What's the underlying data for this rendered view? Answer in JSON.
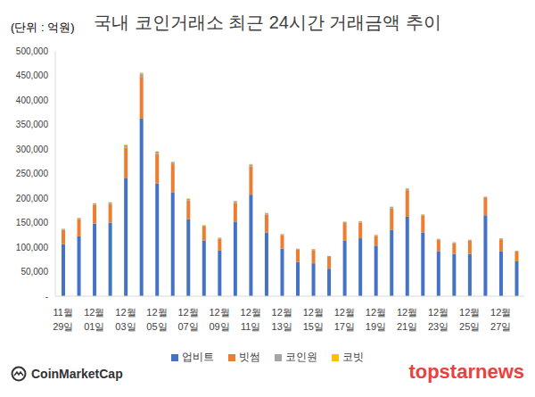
{
  "chart_data": {
    "type": "bar",
    "title": "국내 코인거래소 최근 24시간 거래금액 추이",
    "subtitle": "(단위 : 억원)",
    "categories": [
      "11월 29일",
      null,
      "12월 01일",
      null,
      "12월 03일",
      null,
      "12월 05일",
      null,
      "12월 07일",
      null,
      "12월 09일",
      null,
      "12월 11일",
      null,
      "12월 13일",
      null,
      "12월 15일",
      null,
      "12월 17일",
      null,
      "12월 19일",
      null,
      "12월 21일",
      null,
      "12월 23일",
      null,
      "12월 25일",
      null,
      "12월 27일",
      null
    ],
    "series": [
      {
        "name": "업비트",
        "color": "#4472c4",
        "values": [
          106000,
          122000,
          148000,
          150000,
          240000,
          362000,
          230000,
          212000,
          157000,
          113000,
          93000,
          152000,
          207000,
          130000,
          97000,
          70000,
          67000,
          56000,
          113000,
          118000,
          103000,
          135000,
          162000,
          130000,
          92000,
          86000,
          86000,
          165000,
          92000,
          71000
        ]
      },
      {
        "name": "빗썸",
        "color": "#ed7d31",
        "values": [
          29000,
          35000,
          38000,
          38000,
          63000,
          85000,
          60000,
          57000,
          38000,
          29000,
          24000,
          38000,
          57000,
          36000,
          27000,
          25000,
          27000,
          24000,
          36000,
          32000,
          20000,
          44000,
          54000,
          34000,
          23000,
          22000,
          27000,
          35000,
          24000,
          20000
        ]
      },
      {
        "name": "코인원",
        "color": "#a5a5a5",
        "values": [
          2000,
          2500,
          3000,
          3000,
          5000,
          7000,
          4500,
          4500,
          3500,
          2500,
          2000,
          3500,
          4500,
          3000,
          2500,
          1800,
          2000,
          1800,
          2500,
          2500,
          1800,
          3000,
          3500,
          2500,
          1800,
          1800,
          1800,
          2500,
          1800,
          1500
        ]
      },
      {
        "name": "코빗",
        "color": "#ffc000",
        "values": [
          500,
          600,
          700,
          700,
          1200,
          1500,
          1000,
          1000,
          800,
          600,
          500,
          800,
          1000,
          700,
          500,
          400,
          400,
          400,
          600,
          600,
          400,
          700,
          800,
          600,
          400,
          400,
          400,
          600,
          400,
          300
        ]
      }
    ],
    "ylim": [
      0,
      500000
    ],
    "yticks": [
      {
        "value": 0,
        "label": "-"
      },
      {
        "value": 50000,
        "label": "50,000"
      },
      {
        "value": 100000,
        "label": "100,000"
      },
      {
        "value": 150000,
        "label": "150,000"
      },
      {
        "value": 200000,
        "label": "200,000"
      },
      {
        "value": 250000,
        "label": "250,000"
      },
      {
        "value": 300000,
        "label": "300,000"
      },
      {
        "value": 350000,
        "label": "350,000"
      },
      {
        "value": 400000,
        "label": "400,000"
      },
      {
        "value": 450000,
        "label": "450,000"
      },
      {
        "value": 500000,
        "label": "500,000"
      }
    ],
    "stacked": true,
    "grid": false,
    "legend": "bottom",
    "annotations": [
      "CoinMarketCap",
      "topstarnews"
    ]
  }
}
